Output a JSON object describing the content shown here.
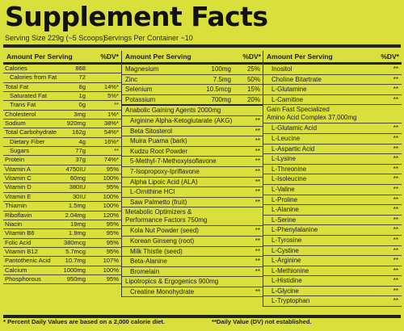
{
  "title": "Supplement Facts",
  "serving_size": "Serving Size 229g (~5 Scoops)",
  "servings_per_container": "Servings Per Container ~10",
  "header": {
    "amount": "Amount Per Serving",
    "dv": "%DV*"
  },
  "col1": [
    {
      "name": "Calories",
      "amount": "868",
      "dv": ""
    },
    {
      "name": "Calories from Fat",
      "amount": "72",
      "dv": "",
      "indent": true
    },
    {
      "name": "Total Fat",
      "amount": "8g",
      "dv": "14%*"
    },
    {
      "name": "Saturated Fat",
      "amount": "1g",
      "dv": "5%*",
      "indent": true
    },
    {
      "name": "Trans Fat",
      "amount": "0g",
      "dv": "**",
      "indent": true
    },
    {
      "name": "Cholesterol",
      "amount": "3mg",
      "dv": "1%*"
    },
    {
      "name": "Sodium",
      "amount": "920mg",
      "dv": "38%*"
    },
    {
      "name": "Total Carbohydrate",
      "amount": "162g",
      "dv": "54%*"
    },
    {
      "name": "Dietary Fiber",
      "amount": "4g",
      "dv": "16%*",
      "indent": true
    },
    {
      "name": "Sugars",
      "amount": "77g",
      "dv": "**",
      "indent": true
    },
    {
      "name": "Protein",
      "amount": "37g",
      "dv": "74%*"
    },
    {
      "name": "Vitamin A",
      "amount": "4750IU",
      "dv": "95%"
    },
    {
      "name": "Vitamin C",
      "amount": "60mg",
      "dv": "100%"
    },
    {
      "name": "Vitamin D",
      "amount": "380IU",
      "dv": "95%"
    },
    {
      "name": "Vitamin E",
      "amount": "30IU",
      "dv": "100%"
    },
    {
      "name": "Thiamin",
      "amount": "1.5mg",
      "dv": "100%"
    },
    {
      "name": "Riboflavin",
      "amount": "2.04mg",
      "dv": "120%"
    },
    {
      "name": "Niacin",
      "amount": "19mg",
      "dv": "95%"
    },
    {
      "name": "Vitamin B6",
      "amount": "1.9mg",
      "dv": "95%"
    },
    {
      "name": "Folic Acid",
      "amount": "380mcg",
      "dv": "95%"
    },
    {
      "name": "Vitamin B12",
      "amount": "5.7mcg",
      "dv": "95%"
    },
    {
      "name": "Pantothenic Acid",
      "amount": "10.7mg",
      "dv": "107%"
    },
    {
      "name": "Calcium",
      "amount": "1000mg",
      "dv": "100%"
    },
    {
      "name": "Phosphorous",
      "amount": "950mg",
      "dv": "95%"
    }
  ],
  "col2": [
    {
      "name": "Magnesium",
      "amount": "100mg",
      "dv": "25%"
    },
    {
      "name": "Zinc",
      "amount": "7.5mg",
      "dv": "50%"
    },
    {
      "name": "Selenium",
      "amount": "10.5mcg",
      "dv": "15%"
    },
    {
      "name": "Potassium",
      "amount": "700mg",
      "dv": "20%",
      "thick": true
    },
    {
      "name": "Anabolic Gaining Agents  2000mg",
      "amount": "",
      "dv": ""
    },
    {
      "name": "Arginine Alpha-Ketoglutarate (AKG)",
      "amount": "",
      "dv": "**",
      "indent": true
    },
    {
      "name": "Beta Sitosterol",
      "amount": "",
      "dv": "**",
      "indent": true
    },
    {
      "name": "Muira Puama (bark)",
      "amount": "",
      "dv": "**",
      "indent": true
    },
    {
      "name": "Kudzu Root Powder",
      "amount": "",
      "dv": "**",
      "indent": true
    },
    {
      "name": "5-Methyl-7-Methoxyisoflavone",
      "amount": "",
      "dv": "**",
      "indent": true
    },
    {
      "name": "7-Isopropoxy-Ipriflavone",
      "amount": "",
      "dv": "**",
      "indent": true
    },
    {
      "name": "Alpha Lipoic Acid (ALA)",
      "amount": "",
      "dv": "**",
      "indent": true
    },
    {
      "name": "L-Ornithine HCl",
      "amount": "",
      "dv": "**",
      "indent": true
    },
    {
      "name": "Saw Palmetto (fruit)",
      "amount": "",
      "dv": "**",
      "indent": true
    },
    {
      "name": "Metabolic Optimizers &",
      "line2": "Performance Factors     750mg",
      "amount": "",
      "dv": "",
      "tall": true
    },
    {
      "name": "Kola Nut Powder (seed)",
      "amount": "",
      "dv": "**",
      "indent": true
    },
    {
      "name": "Korean Ginseng (root)",
      "amount": "",
      "dv": "**",
      "indent": true
    },
    {
      "name": "Milk Thistle (seed)",
      "amount": "",
      "dv": "**",
      "indent": true
    },
    {
      "name": "Beta-Alanine",
      "amount": "",
      "dv": "**",
      "indent": true
    },
    {
      "name": "Bromelain",
      "amount": "",
      "dv": "**",
      "indent": true
    },
    {
      "name": "Lipotropics & Ergogenics   900mg",
      "amount": "",
      "dv": ""
    },
    {
      "name": "Creatine Monohydrate",
      "amount": "",
      "dv": "**",
      "indent": true
    }
  ],
  "col3": [
    {
      "name": "Inositol",
      "dv": "**",
      "indent": true
    },
    {
      "name": "Choline Bitartrate",
      "dv": "**",
      "indent": true
    },
    {
      "name": "L-Glutamine",
      "dv": "**",
      "indent": true
    },
    {
      "name": "L-Carnitine",
      "dv": "**",
      "indent": true
    },
    {
      "name": "Gain Fast Specialized",
      "line2": "Amino Acid Complex  37,000mg",
      "dv": "",
      "tall": true
    },
    {
      "name": "L-Glutamic Acid",
      "dv": "**",
      "indent": true
    },
    {
      "name": "L-Leucine",
      "dv": "**",
      "indent": true
    },
    {
      "name": "L-Aspartic Acid",
      "dv": "**",
      "indent": true
    },
    {
      "name": "L-Lysine",
      "dv": "**",
      "indent": true
    },
    {
      "name": "L-Threonine",
      "dv": "**",
      "indent": true
    },
    {
      "name": "L-Isoleucine",
      "dv": "**",
      "indent": true
    },
    {
      "name": "L-Valine",
      "dv": "**",
      "indent": true
    },
    {
      "name": "L-Proline",
      "dv": "**",
      "indent": true
    },
    {
      "name": "L-Alanine",
      "dv": "**",
      "indent": true
    },
    {
      "name": "L-Serine",
      "dv": "**",
      "indent": true
    },
    {
      "name": "L-Phenylalanine",
      "dv": "**",
      "indent": true
    },
    {
      "name": "L-Tyrosine",
      "dv": "**",
      "indent": true
    },
    {
      "name": "L-Cystine",
      "dv": "**",
      "indent": true
    },
    {
      "name": "L-Arginine",
      "dv": "**",
      "indent": true
    },
    {
      "name": "L-Methionine",
      "dv": "**",
      "indent": true
    },
    {
      "name": "L-Histidine",
      "dv": "**",
      "indent": true
    },
    {
      "name": "L-Glycine",
      "dv": "**",
      "indent": true
    },
    {
      "name": "L-Tryptophan",
      "dv": "**",
      "indent": true
    }
  ],
  "footer_left": "* Percent Daily Values are based on a 2,000 calorie diet.",
  "footer_right": "**Daily Value (DV) not established."
}
